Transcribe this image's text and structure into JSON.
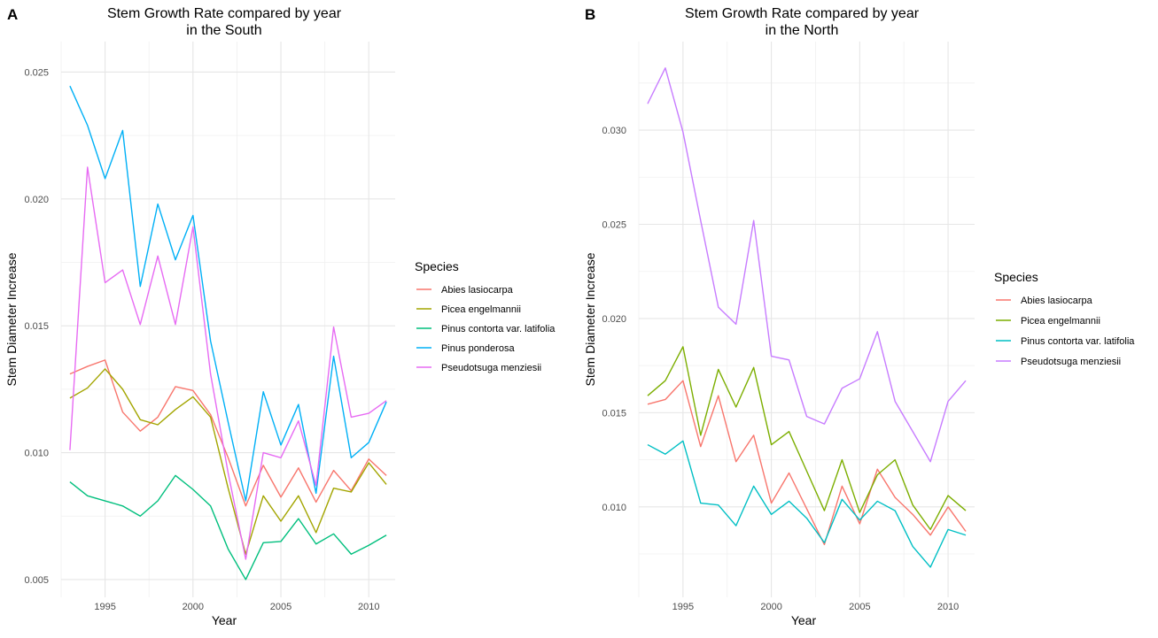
{
  "chart_data": [
    {
      "type": "line",
      "panel_label": "A",
      "title": "Stem Growth Rate compared by year",
      "subtitle": "in the South",
      "xlabel": "Year",
      "ylabel": "Stem Diameter Increase",
      "xlim": [
        1992.5,
        2011.5
      ],
      "ylim": [
        0.0043,
        0.0262
      ],
      "xticks": [
        1995,
        2000,
        2005,
        2010
      ],
      "xtick_labels": [
        "1995",
        "2000",
        "2005",
        "2010"
      ],
      "yticks": [
        0.005,
        0.01,
        0.015,
        0.02,
        0.025
      ],
      "ytick_labels": [
        "0.005",
        "0.010",
        "0.015",
        "0.020",
        "0.025"
      ],
      "legend_title": "Species",
      "legend_position": "right",
      "grid": true,
      "x": [
        1993,
        1994,
        1995,
        1996,
        1997,
        1998,
        1999,
        2000,
        2001,
        2002,
        2003,
        2004,
        2005,
        2006,
        2007,
        2008,
        2009,
        2010,
        2011
      ],
      "series": [
        {
          "name": "Abies lasiocarpa",
          "color": "#F8766D",
          "values": [
            0.0131,
            0.0134,
            0.01365,
            0.0116,
            0.01085,
            0.0114,
            0.0126,
            0.01245,
            0.0115,
            0.0098,
            0.0079,
            0.0095,
            0.00825,
            0.0094,
            0.00805,
            0.0093,
            0.0085,
            0.00975,
            0.0091
          ]
        },
        {
          "name": "Picea engelmannii",
          "color": "#A3A500",
          "values": [
            0.01215,
            0.01255,
            0.0133,
            0.0125,
            0.0113,
            0.0111,
            0.0117,
            0.0122,
            0.0114,
            0.0086,
            0.006,
            0.0083,
            0.0073,
            0.0083,
            0.00685,
            0.0086,
            0.00845,
            0.0096,
            0.00875
          ]
        },
        {
          "name": "Pinus contorta var. latifolia",
          "color": "#00BF7D",
          "values": [
            0.00885,
            0.0083,
            0.0081,
            0.0079,
            0.0075,
            0.0081,
            0.0091,
            0.00855,
            0.0079,
            0.0062,
            0.005,
            0.00645,
            0.0065,
            0.0074,
            0.0064,
            0.0068,
            0.006,
            0.00635,
            0.00675
          ]
        },
        {
          "name": "Pinus ponderosa",
          "color": "#00B0F6",
          "values": [
            0.02445,
            0.0229,
            0.0208,
            0.0227,
            0.01655,
            0.0198,
            0.0176,
            0.01935,
            0.0144,
            0.0112,
            0.0081,
            0.0124,
            0.0103,
            0.0119,
            0.0084,
            0.0138,
            0.0098,
            0.0104,
            0.012
          ]
        },
        {
          "name": "Pseudotsuga menziesii",
          "color": "#E76BF3",
          "values": [
            0.0101,
            0.02125,
            0.0167,
            0.0172,
            0.01505,
            0.01775,
            0.01505,
            0.0189,
            0.0131,
            0.0092,
            0.0058,
            0.01,
            0.0098,
            0.01125,
            0.0087,
            0.01495,
            0.0114,
            0.01155,
            0.01205
          ]
        }
      ]
    },
    {
      "type": "line",
      "panel_label": "B",
      "title": "Stem Growth Rate compared by year",
      "subtitle": "in the North",
      "xlabel": "Year",
      "ylabel": "Stem Diameter Increase",
      "xlim": [
        1992.5,
        2011.5
      ],
      "ylim": [
        0.0052,
        0.0347
      ],
      "xticks": [
        1995,
        2000,
        2005,
        2010
      ],
      "xtick_labels": [
        "1995",
        "2000",
        "2005",
        "2010"
      ],
      "yticks": [
        0.01,
        0.015,
        0.02,
        0.025,
        0.03
      ],
      "ytick_labels": [
        "0.010",
        "0.015",
        "0.020",
        "0.025",
        "0.030"
      ],
      "legend_title": "Species",
      "legend_position": "right",
      "grid": true,
      "x": [
        1993,
        1994,
        1995,
        1996,
        1997,
        1998,
        1999,
        2000,
        2001,
        2002,
        2003,
        2004,
        2005,
        2006,
        2007,
        2008,
        2009,
        2010,
        2011
      ],
      "series": [
        {
          "name": "Abies lasiocarpa",
          "color": "#F8766D",
          "values": [
            0.01545,
            0.0157,
            0.0167,
            0.0132,
            0.0159,
            0.0124,
            0.0138,
            0.0102,
            0.0118,
            0.0099,
            0.008,
            0.0111,
            0.0091,
            0.012,
            0.0105,
            0.0096,
            0.0085,
            0.01,
            0.0087
          ]
        },
        {
          "name": "Picea engelmannii",
          "color": "#7CAE00",
          "values": [
            0.0159,
            0.0167,
            0.0185,
            0.0138,
            0.0173,
            0.0153,
            0.0174,
            0.0133,
            0.014,
            0.0119,
            0.0098,
            0.0125,
            0.0097,
            0.0117,
            0.0125,
            0.0101,
            0.0088,
            0.0106,
            0.0098
          ]
        },
        {
          "name": "Pinus contorta var. latifolia",
          "color": "#00BFC4",
          "values": [
            0.0133,
            0.0128,
            0.0135,
            0.0102,
            0.0101,
            0.009,
            0.0111,
            0.0096,
            0.0103,
            0.0094,
            0.0081,
            0.0104,
            0.0093,
            0.0103,
            0.0098,
            0.0079,
            0.0068,
            0.0088,
            0.0085
          ]
        },
        {
          "name": "Pseudotsuga menziesii",
          "color": "#C77CFF",
          "values": [
            0.0314,
            0.0333,
            0.0299,
            0.0252,
            0.0206,
            0.0197,
            0.0252,
            0.018,
            0.0178,
            0.0148,
            0.0144,
            0.0163,
            0.0168,
            0.0193,
            0.0156,
            0.014,
            0.0124,
            0.0156,
            0.0167
          ]
        }
      ]
    }
  ]
}
